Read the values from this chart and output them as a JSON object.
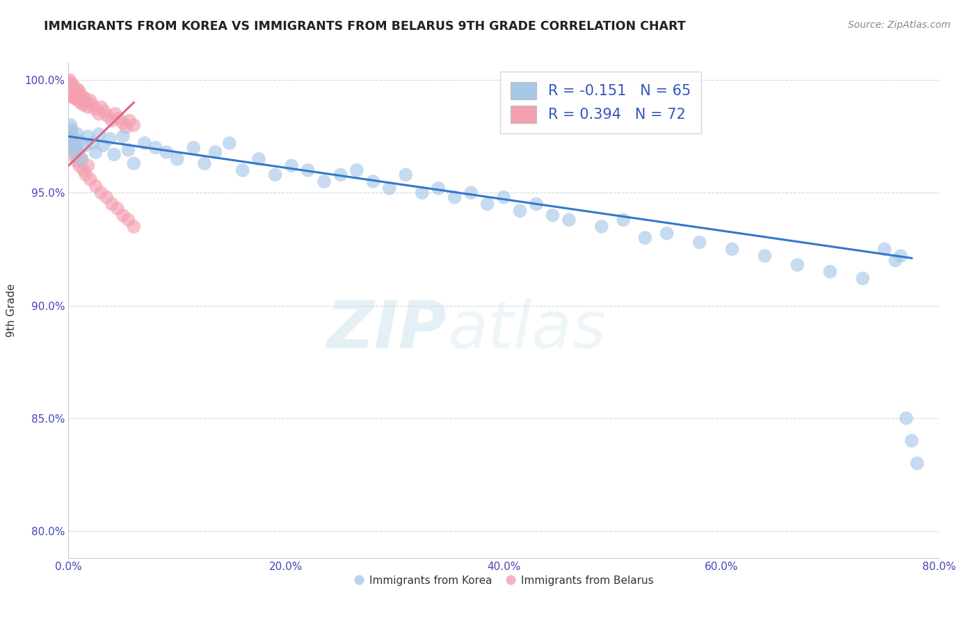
{
  "title": "IMMIGRANTS FROM KOREA VS IMMIGRANTS FROM BELARUS 9TH GRADE CORRELATION CHART",
  "source": "Source: ZipAtlas.com",
  "ylabel": "9th Grade",
  "xlim": [
    0.0,
    0.8
  ],
  "ylim": [
    0.788,
    1.008
  ],
  "x_ticks": [
    0.0,
    0.2,
    0.4,
    0.6,
    0.8
  ],
  "x_tick_labels": [
    "0.0%",
    "20.0%",
    "40.0%",
    "60.0%",
    "80.0%"
  ],
  "y_ticks": [
    0.8,
    0.85,
    0.9,
    0.95,
    1.0
  ],
  "y_tick_labels": [
    "80.0%",
    "85.0%",
    "90.0%",
    "95.0%",
    "100.0%"
  ],
  "korea_R": -0.151,
  "korea_N": 65,
  "belarus_R": 0.394,
  "belarus_N": 72,
  "korea_color": "#a8c8e8",
  "belarus_color": "#f4a0b0",
  "korea_line_color": "#3377cc",
  "belarus_line_color": "#dd6688",
  "legend_korea_label": "R = -0.151   N = 65",
  "legend_belarus_label": "R = 0.394   N = 72",
  "watermark_zip": "ZIP",
  "watermark_atlas": "atlas",
  "background_color": "#ffffff",
  "grid_color": "#cccccc",
  "korea_scatter_x": [
    0.001,
    0.002,
    0.003,
    0.004,
    0.005,
    0.006,
    0.008,
    0.01,
    0.012,
    0.015,
    0.018,
    0.022,
    0.025,
    0.028,
    0.032,
    0.038,
    0.042,
    0.05,
    0.055,
    0.06,
    0.07,
    0.08,
    0.09,
    0.1,
    0.115,
    0.125,
    0.135,
    0.148,
    0.16,
    0.175,
    0.19,
    0.205,
    0.22,
    0.235,
    0.25,
    0.265,
    0.28,
    0.295,
    0.31,
    0.325,
    0.34,
    0.355,
    0.37,
    0.385,
    0.4,
    0.415,
    0.43,
    0.445,
    0.46,
    0.49,
    0.51,
    0.53,
    0.55,
    0.58,
    0.61,
    0.64,
    0.67,
    0.7,
    0.73,
    0.75,
    0.76,
    0.765,
    0.77,
    0.775,
    0.78
  ],
  "korea_scatter_y": [
    0.975,
    0.98,
    0.978,
    0.972,
    0.968,
    0.97,
    0.976,
    0.973,
    0.965,
    0.971,
    0.975,
    0.972,
    0.968,
    0.976,
    0.971,
    0.974,
    0.967,
    0.975,
    0.969,
    0.963,
    0.972,
    0.97,
    0.968,
    0.965,
    0.97,
    0.963,
    0.968,
    0.972,
    0.96,
    0.965,
    0.958,
    0.962,
    0.96,
    0.955,
    0.958,
    0.96,
    0.955,
    0.952,
    0.958,
    0.95,
    0.952,
    0.948,
    0.95,
    0.945,
    0.948,
    0.942,
    0.945,
    0.94,
    0.938,
    0.935,
    0.938,
    0.93,
    0.932,
    0.928,
    0.925,
    0.922,
    0.918,
    0.915,
    0.912,
    0.925,
    0.92,
    0.922,
    0.85,
    0.84,
    0.83
  ],
  "belarus_scatter_x": [
    0.001,
    0.001,
    0.001,
    0.001,
    0.001,
    0.002,
    0.002,
    0.002,
    0.002,
    0.003,
    0.003,
    0.003,
    0.004,
    0.004,
    0.004,
    0.005,
    0.005,
    0.006,
    0.006,
    0.007,
    0.007,
    0.008,
    0.008,
    0.009,
    0.01,
    0.01,
    0.011,
    0.012,
    0.013,
    0.014,
    0.015,
    0.016,
    0.018,
    0.02,
    0.022,
    0.025,
    0.028,
    0.03,
    0.033,
    0.036,
    0.04,
    0.043,
    0.046,
    0.05,
    0.053,
    0.056,
    0.06,
    0.001,
    0.002,
    0.002,
    0.003,
    0.003,
    0.004,
    0.005,
    0.006,
    0.007,
    0.008,
    0.009,
    0.01,
    0.012,
    0.014,
    0.016,
    0.018,
    0.02,
    0.025,
    0.03,
    0.035,
    0.04,
    0.045,
    0.05,
    0.055,
    0.06
  ],
  "belarus_scatter_y": [
    0.997,
    0.998,
    1.0,
    0.999,
    0.996,
    0.997,
    0.995,
    0.998,
    0.993,
    0.996,
    0.994,
    0.997,
    0.995,
    0.993,
    0.998,
    0.994,
    0.992,
    0.995,
    0.993,
    0.994,
    0.992,
    0.993,
    0.996,
    0.991,
    0.992,
    0.995,
    0.99,
    0.993,
    0.991,
    0.989,
    0.992,
    0.99,
    0.988,
    0.991,
    0.989,
    0.987,
    0.985,
    0.988,
    0.986,
    0.984,
    0.982,
    0.985,
    0.983,
    0.981,
    0.979,
    0.982,
    0.98,
    0.975,
    0.973,
    0.977,
    0.971,
    0.975,
    0.969,
    0.972,
    0.966,
    0.97,
    0.964,
    0.968,
    0.962,
    0.965,
    0.96,
    0.958,
    0.962,
    0.956,
    0.953,
    0.95,
    0.948,
    0.945,
    0.943,
    0.94,
    0.938,
    0.935
  ],
  "korea_trend_x0": 0.0,
  "korea_trend_x1": 0.775,
  "korea_trend_y0": 0.975,
  "korea_trend_y1": 0.921,
  "belarus_trend_x0": 0.0,
  "belarus_trend_x1": 0.06,
  "belarus_trend_y0": 0.962,
  "belarus_trend_y1": 0.99
}
